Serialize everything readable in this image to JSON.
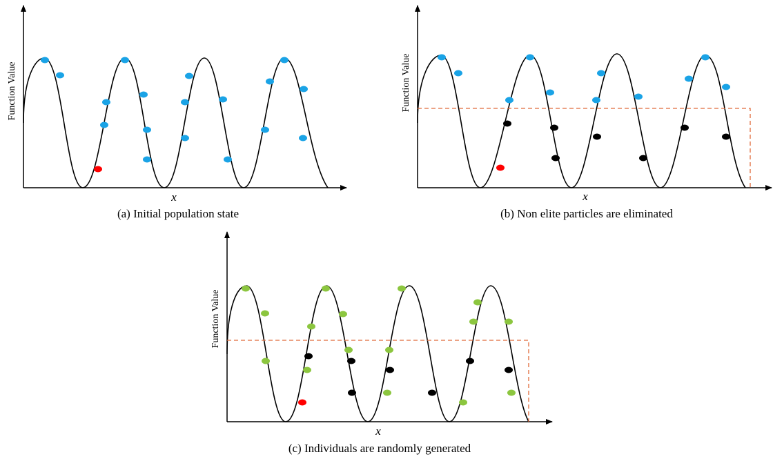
{
  "colors": {
    "initial": "#1aa3e6",
    "best": "#ff0000",
    "eliminated": "#000000",
    "generated": "#8cc63f",
    "threshold": "#e06a3a"
  },
  "panels": [
    {
      "id": "a",
      "caption": "(a) Initial population state",
      "y_label": "Function Value",
      "x_label": "x",
      "has_threshold": false
    },
    {
      "id": "b",
      "caption": "(b) Non elite particles are eliminated",
      "y_label": "Function Value",
      "x_label": "x",
      "has_threshold": true
    },
    {
      "id": "c",
      "caption": "(c) Individuals are randomly generated",
      "y_label": "Function Value",
      "x_label": "x",
      "has_threshold": true
    }
  ]
}
